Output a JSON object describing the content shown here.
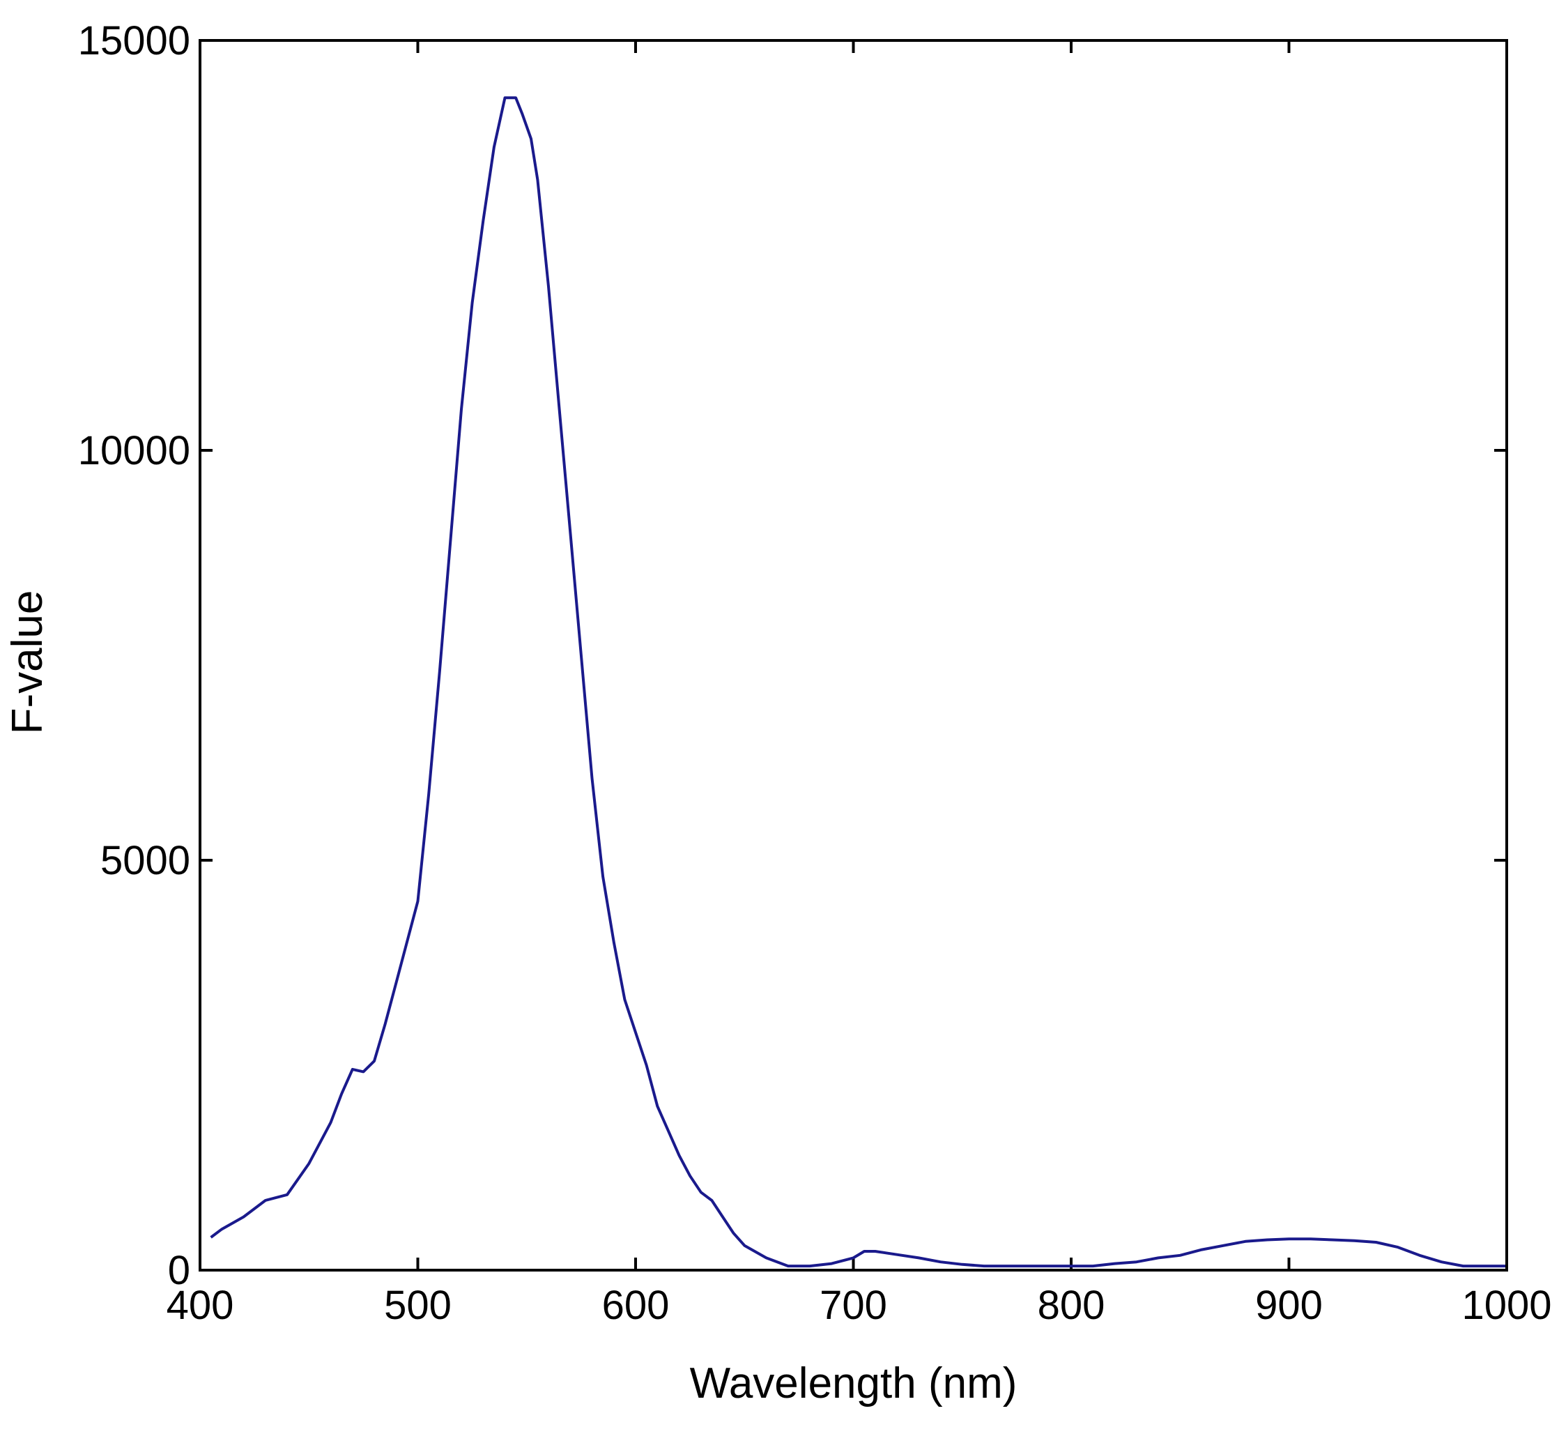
{
  "chart_data": {
    "type": "line",
    "title": "",
    "xlabel": "Wavelength (nm)",
    "ylabel": "F-value",
    "xlim": [
      400,
      1000
    ],
    "ylim": [
      0,
      15000
    ],
    "xticks": [
      400,
      500,
      600,
      700,
      800,
      900,
      1000
    ],
    "yticks": [
      0,
      5000,
      10000,
      15000
    ],
    "xtick_labels": [
      "400",
      "500",
      "600",
      "700",
      "800",
      "900",
      "1000"
    ],
    "ytick_labels": [
      "0",
      "5000",
      "10000",
      "15000"
    ],
    "grid": false,
    "legend": "none",
    "line_color": "#1a1a8c",
    "series": [
      {
        "x": [
          405,
          410,
          420,
          430,
          440,
          450,
          460,
          465,
          470,
          475,
          480,
          485,
          490,
          495,
          500,
          505,
          510,
          515,
          520,
          525,
          530,
          535,
          540,
          545,
          548,
          552,
          555,
          560,
          565,
          570,
          575,
          580,
          585,
          590,
          595,
          600,
          605,
          610,
          615,
          620,
          625,
          630,
          635,
          640,
          645,
          650,
          660,
          670,
          680,
          690,
          700,
          705,
          710,
          720,
          730,
          740,
          750,
          760,
          770,
          780,
          790,
          800,
          810,
          820,
          830,
          840,
          850,
          860,
          870,
          880,
          890,
          900,
          910,
          920,
          930,
          940,
          950,
          960,
          970,
          980,
          990,
          1000
        ],
        "y": [
          400,
          500,
          650,
          850,
          920,
          1300,
          1800,
          2150,
          2450,
          2420,
          2550,
          3000,
          3500,
          4000,
          4500,
          5800,
          7300,
          8900,
          10500,
          11800,
          12800,
          13700,
          14300,
          14300,
          14100,
          13800,
          13300,
          12000,
          10500,
          9000,
          7500,
          6000,
          4800,
          4000,
          3300,
          2900,
          2500,
          2000,
          1700,
          1400,
          1150,
          950,
          850,
          650,
          450,
          300,
          150,
          50,
          50,
          80,
          150,
          230,
          230,
          190,
          150,
          100,
          70,
          50,
          50,
          50,
          50,
          50,
          50,
          80,
          100,
          150,
          180,
          250,
          300,
          350,
          370,
          380,
          380,
          370,
          360,
          340,
          280,
          180,
          100,
          50,
          50,
          50
        ]
      }
    ]
  }
}
